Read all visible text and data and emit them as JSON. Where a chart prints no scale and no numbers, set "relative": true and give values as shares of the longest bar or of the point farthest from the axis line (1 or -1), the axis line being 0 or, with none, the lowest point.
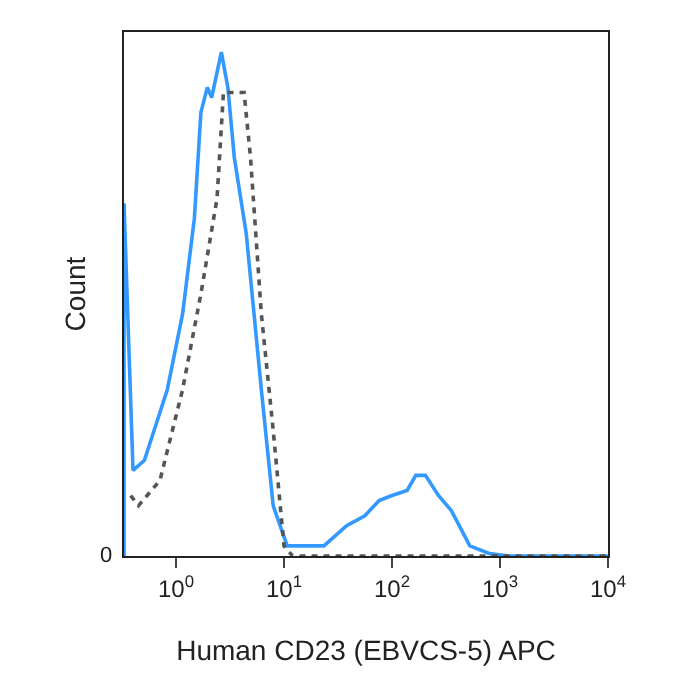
{
  "chart_data": {
    "type": "line",
    "xlabel": "Human CD23 (EBVCS-5) APC",
    "ylabel": "Count",
    "relative": true,
    "log": "x",
    "xlim": [
      0.33,
      10000
    ],
    "xticks": [
      {
        "value": 1,
        "label": "10$^{0}$"
      },
      {
        "value": 10,
        "label": "10$^{1}$"
      },
      {
        "value": 100,
        "label": "10$^{2}$"
      },
      {
        "value": 1000,
        "label": "10$^{3}$"
      },
      {
        "value": 10000,
        "label": "10$^{4}$"
      }
    ],
    "annotations": [
      "0"
    ],
    "grid": false,
    "series": [
      {
        "color": "#3399ff",
        "line_style": "solid",
        "x": [
          0.33,
          0.33,
          0.4,
          0.51,
          0.83,
          1.15,
          1.48,
          1.7,
          1.95,
          2.14,
          2.63,
          3.02,
          3.47,
          4.47,
          6.17,
          7.94,
          10.7,
          15.8,
          23.4,
          38,
          56,
          76,
          100,
          138,
          166,
          204,
          269,
          355,
          525,
          794,
          1200,
          10000
        ],
        "values": [
          0,
          0.7,
          0.17,
          0.19,
          0.33,
          0.48,
          0.67,
          0.88,
          0.93,
          0.91,
          1,
          0.93,
          0.79,
          0.64,
          0.33,
          0.1,
          0.02,
          0.02,
          0.02,
          0.06,
          0.08,
          0.11,
          0.12,
          0.13,
          0.16,
          0.16,
          0.12,
          0.09,
          0.02,
          0.005,
          0,
          0
        ]
      },
      {
        "color": "#555555",
        "line_style": "dotted",
        "x": [
          0.38,
          0.45,
          0.71,
          1.15,
          1.7,
          2.4,
          2.75,
          4.27,
          4.9,
          6.17,
          7.94,
          10,
          12,
          10000
        ],
        "values": [
          0.12,
          0.1,
          0.15,
          0.33,
          0.52,
          0.71,
          0.92,
          0.92,
          0.79,
          0.48,
          0.25,
          0.02,
          0,
          0
        ]
      }
    ]
  }
}
